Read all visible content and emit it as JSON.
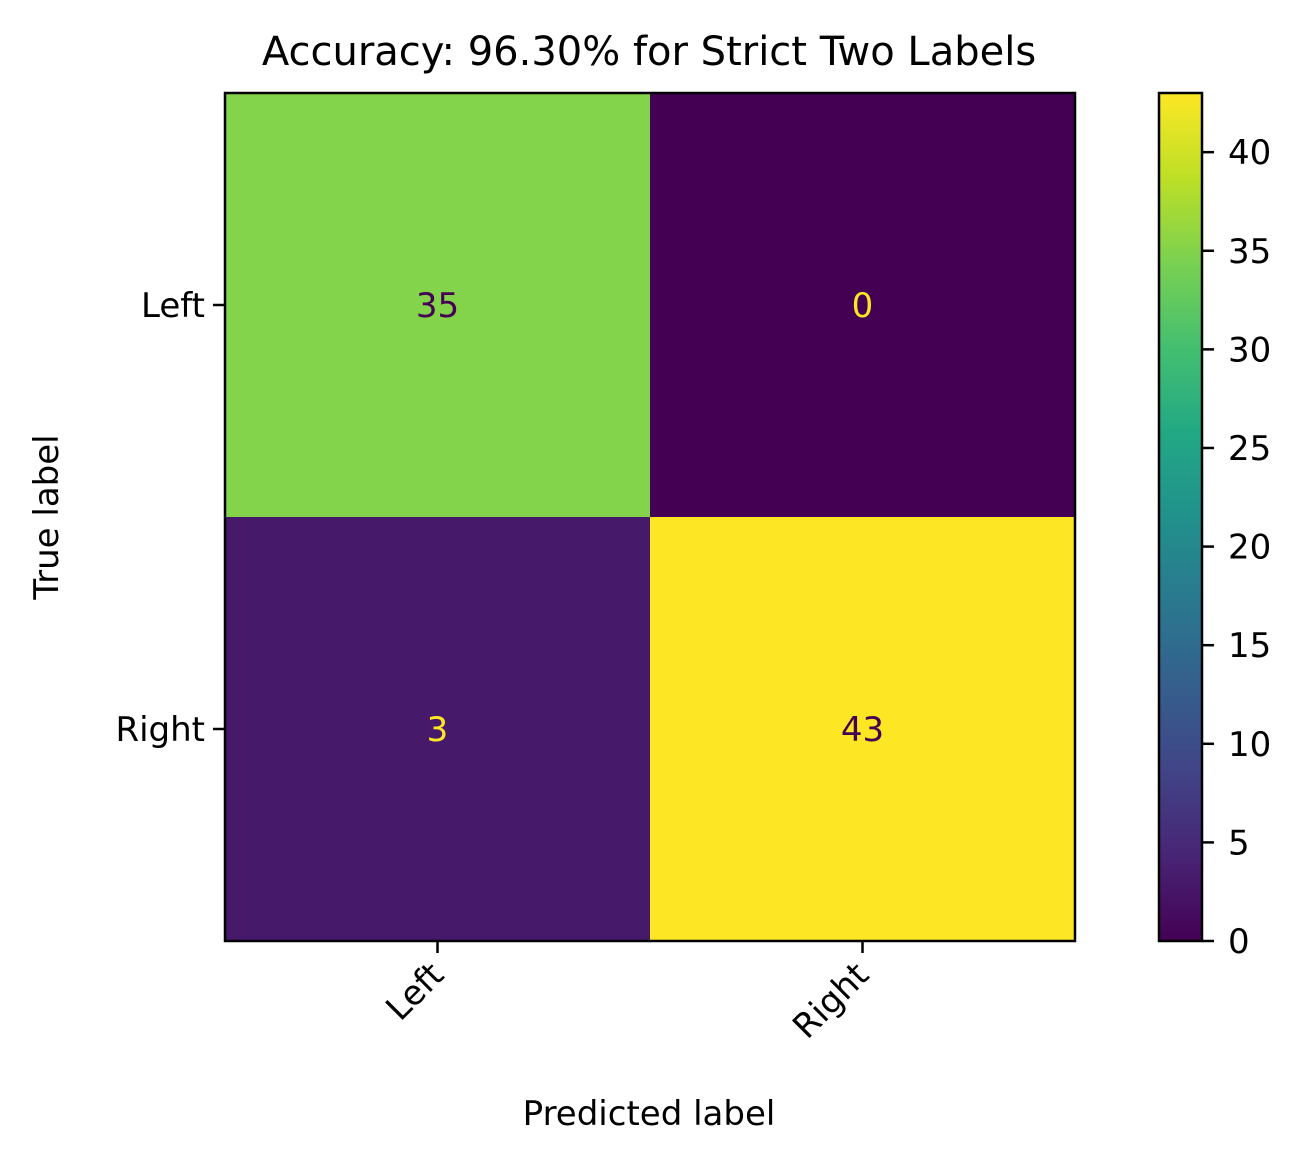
{
  "chart_data": {
    "type": "heatmap",
    "title": "Accuracy: 96.30% for Strict Two Labels",
    "xlabel": "Predicted label",
    "ylabel": "True label",
    "x_categories": [
      "Left",
      "Right"
    ],
    "y_categories": [
      "Left",
      "Right"
    ],
    "values": [
      [
        35,
        0
      ],
      [
        3,
        43
      ]
    ],
    "colormap": "viridis",
    "colorbar": {
      "range": [
        0,
        43
      ],
      "ticks": [
        0,
        5,
        10,
        15,
        20,
        25,
        30,
        35,
        40
      ]
    },
    "x_tick_rotation_deg": 45,
    "grid": false
  }
}
